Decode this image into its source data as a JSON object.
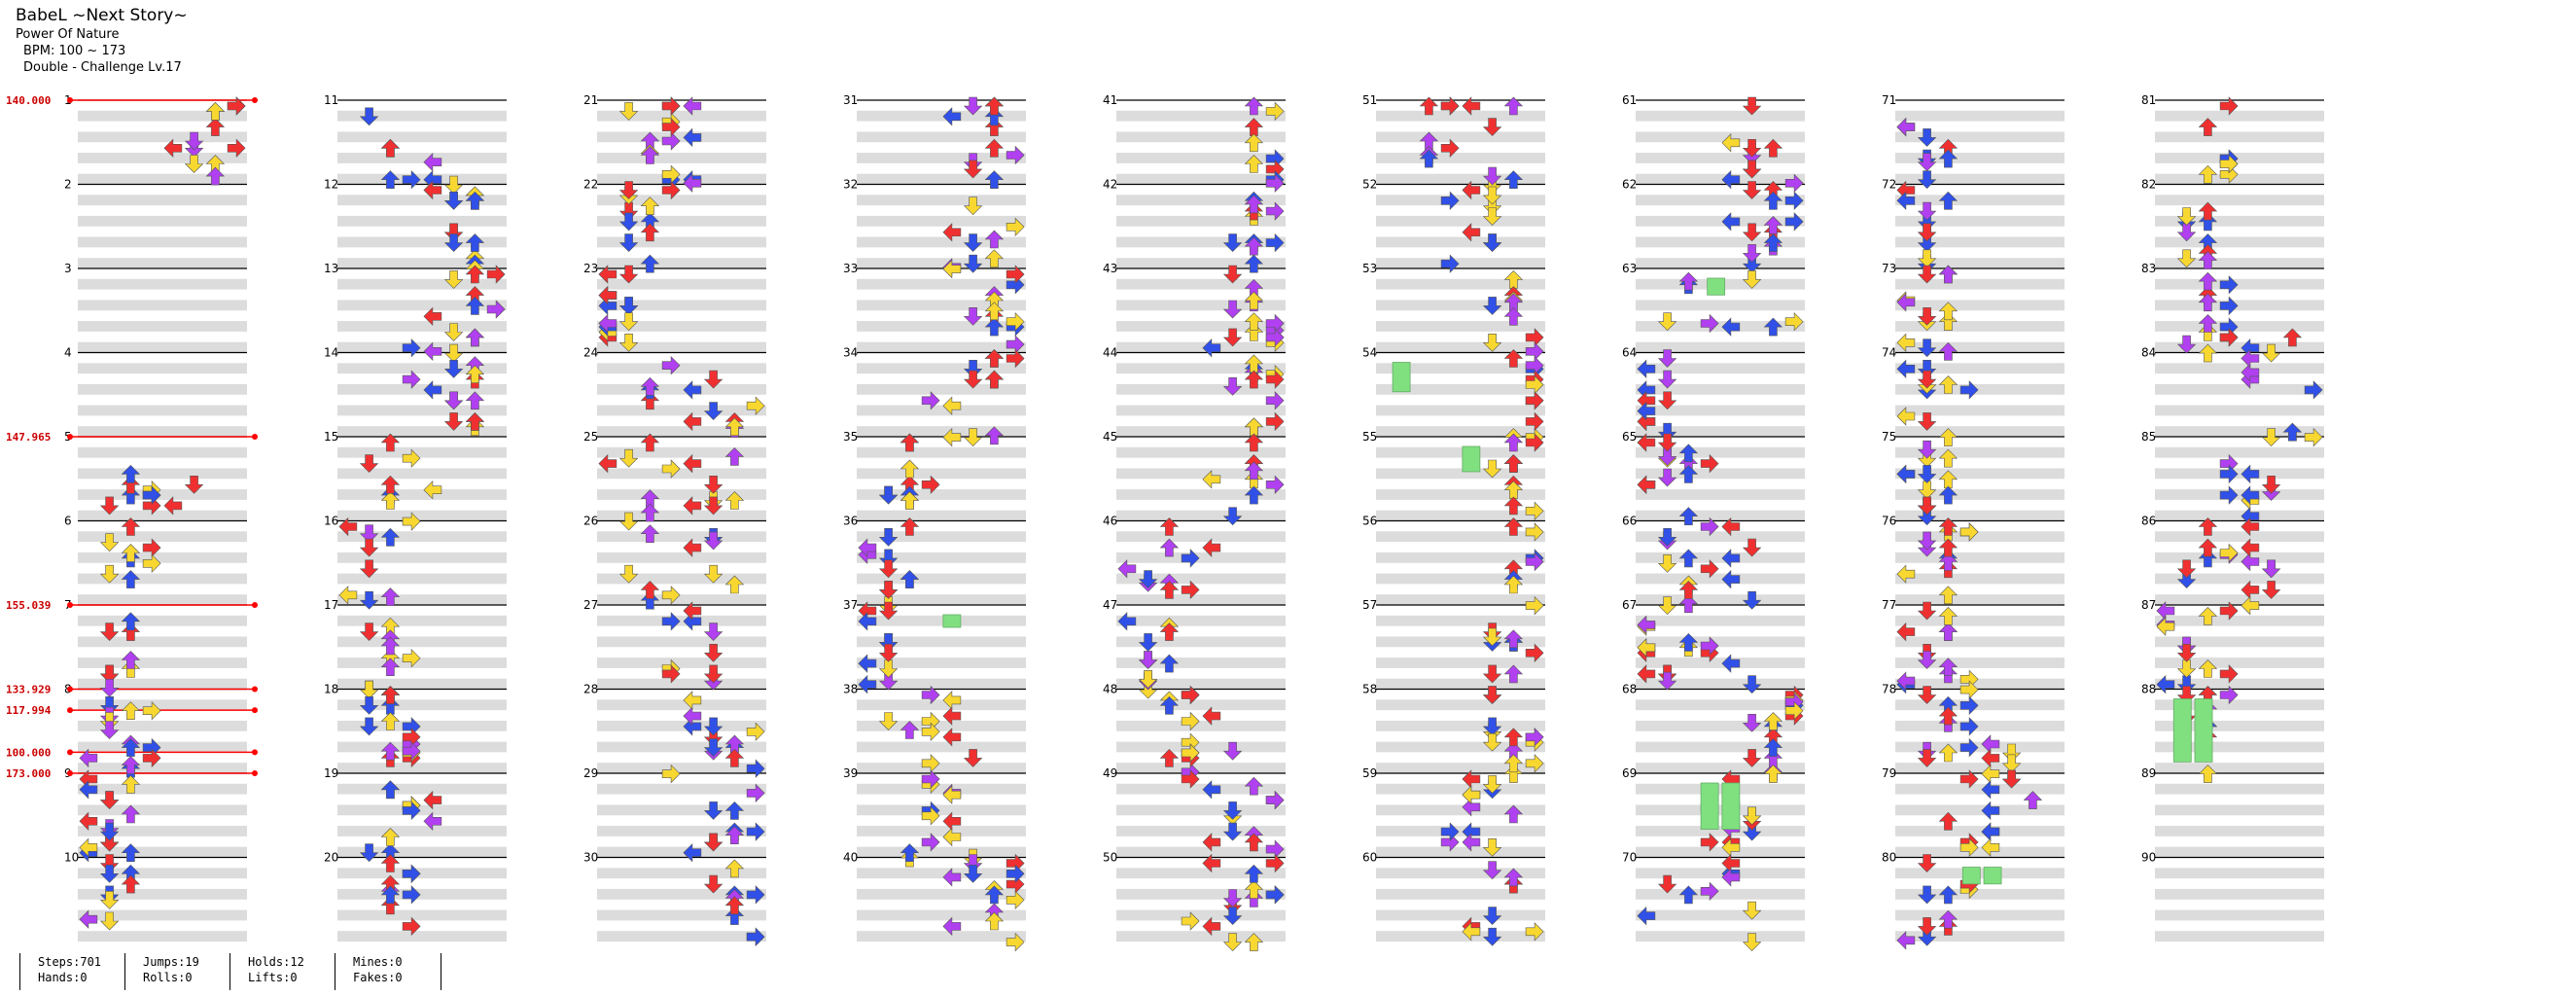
{
  "song": {
    "title": "BabeL ~Next Story~",
    "artist": "Power Of Nature",
    "bpm_text": "BPM: 100 ~ 173",
    "difficulty": "Double - Challenge Lv.17"
  },
  "bpm_changes": [
    {
      "measure": 1.0,
      "label": "140.000"
    },
    {
      "measure": 5.0,
      "label": "147.965"
    },
    {
      "measure": 7.0,
      "label": "155.039"
    },
    {
      "measure": 8.0,
      "label": "133.929"
    },
    {
      "measure": 8.25,
      "label": "117.994"
    },
    {
      "measure": 8.75,
      "label": "100.000"
    },
    {
      "measure": 9.0,
      "label": "173.000"
    }
  ],
  "measure_labels": [
    "1",
    "2",
    "3",
    "4",
    "5",
    "6",
    "7",
    "8",
    "9",
    "10",
    "11",
    "12",
    "13",
    "14",
    "15",
    "16",
    "17",
    "18",
    "19",
    "20",
    "21",
    "22",
    "23",
    "24",
    "25",
    "26",
    "27",
    "28",
    "29",
    "30",
    "31",
    "32",
    "33",
    "34",
    "35",
    "36",
    "37",
    "38",
    "39",
    "40",
    "41",
    "42",
    "43",
    "44",
    "45",
    "46",
    "47",
    "48",
    "49",
    "50",
    "51",
    "52",
    "53",
    "54",
    "55",
    "56",
    "57",
    "58",
    "59",
    "60",
    "61",
    "62",
    "63",
    "64",
    "65",
    "66",
    "67",
    "68",
    "69",
    "70",
    "71",
    "72",
    "73",
    "74",
    "75",
    "76",
    "77",
    "78",
    "79",
    "80",
    "81",
    "82",
    "83",
    "84",
    "85",
    "86",
    "87",
    "88",
    "89",
    "90"
  ],
  "stats": {
    "steps": "Steps:701",
    "hands": "Hands:0",
    "jumps": "Jumps:19",
    "rolls": "Rolls:0",
    "holds": "Holds:12",
    "lifts": "Lifts:0",
    "mines": "Mines:0",
    "fakes": "Fakes:0"
  },
  "colors": {
    "quarter": "#f03030",
    "eighth": "#3050e8",
    "twelfth": "#b040f0",
    "sixteenth": "#f8d830",
    "hold": "#80e080",
    "stripe": "#dcdcdc",
    "bpm_line": "#ff0000",
    "bpm_label": "#cc0000"
  },
  "arrow_icon": "arrow-icon",
  "hold_icon": "hold-icon"
}
